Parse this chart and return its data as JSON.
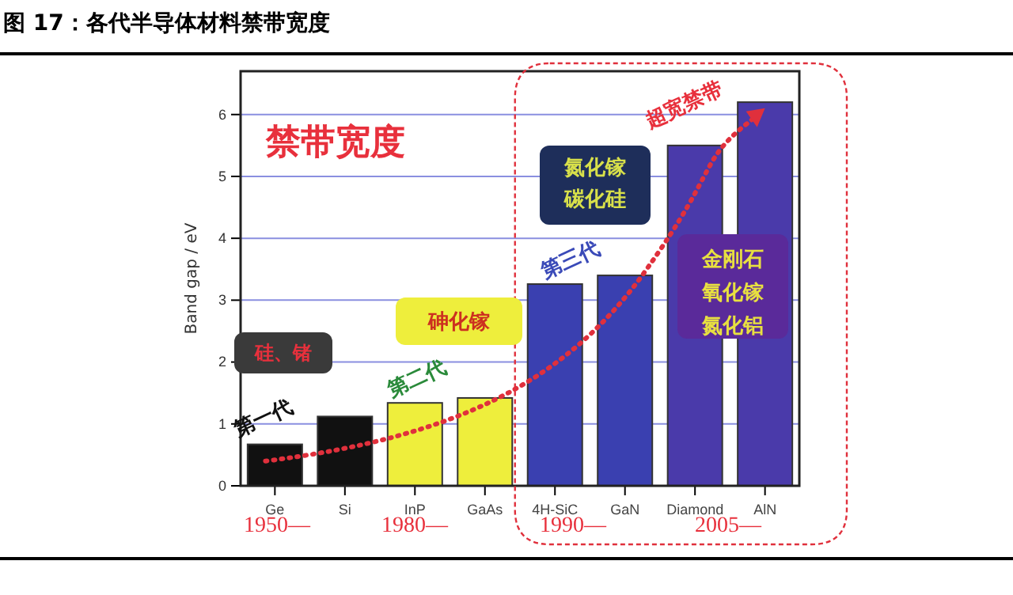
{
  "chart_data": {
    "type": "bar",
    "title": "图 17：各代半导体材料禁带宽度",
    "categories": [
      "Ge",
      "Si",
      "InP",
      "GaAs",
      "4H-SiC",
      "GaN",
      "Diamond",
      "AlN"
    ],
    "values": [
      0.67,
      1.12,
      1.34,
      1.42,
      3.26,
      3.4,
      5.5,
      6.2
    ],
    "colors": [
      "#111111",
      "#111111",
      "#eeee3c",
      "#eeee3c",
      "#3a40b0",
      "#3a40b0",
      "#4a3aaa",
      "#4a3aaa"
    ],
    "ylabel": "Band gap / eV",
    "ylim": [
      0,
      6.7
    ],
    "yticks": [
      0,
      1,
      2,
      3,
      4,
      5,
      6
    ],
    "grid": "y",
    "annotations": [
      "禁带宽度",
      "硅、锗",
      "砷化镓",
      "氮化镓",
      "碳化硅",
      "金刚石",
      "氧化镓",
      "氮化铝",
      "第一代",
      "第二代",
      "第三代",
      "超宽禁带",
      "1950—",
      "1980—",
      "1990—",
      "2005—"
    ]
  }
}
